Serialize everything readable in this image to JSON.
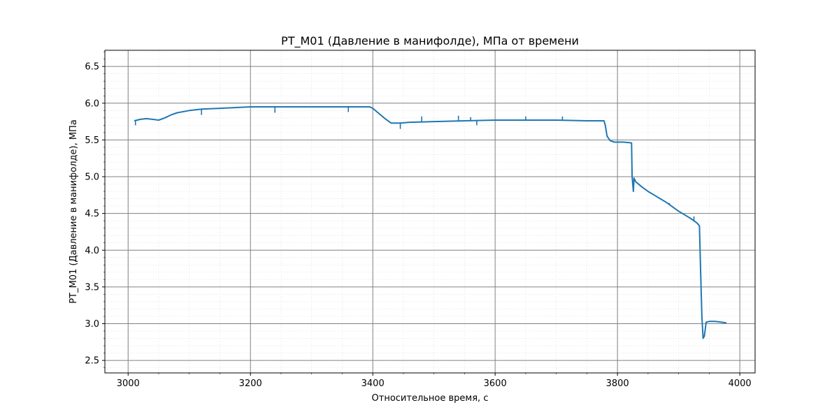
{
  "chart_data": {
    "type": "line",
    "title": "PT_M01 (Давление в манифолде), МПа от времени",
    "xlabel": "Относительное время, с",
    "ylabel": "PT_M01 (Давление в манифолде), МПа",
    "xlim": [
      2962,
      4025
    ],
    "ylim": [
      2.33,
      6.72
    ],
    "xticks": [
      3000,
      3200,
      3400,
      3600,
      3800,
      4000
    ],
    "xtick_labels": [
      "3000",
      "3200",
      "3400",
      "3600",
      "3800",
      "4000"
    ],
    "yticks": [
      2.5,
      3.0,
      3.5,
      4.0,
      4.5,
      5.0,
      5.5,
      6.0,
      6.5
    ],
    "ytick_labels": [
      "2.5",
      "3.0",
      "3.5",
      "4.0",
      "4.5",
      "5.0",
      "5.5",
      "6.0",
      "6.5"
    ],
    "grid": "major and minor",
    "line_color": "#1f77b4",
    "series": [
      {
        "x": [
          3010,
          3020,
          3030,
          3040,
          3050,
          3060,
          3070,
          3080,
          3100,
          3120,
          3150,
          3200,
          3250,
          3300,
          3350,
          3395,
          3400,
          3410,
          3420,
          3430,
          3445,
          3460,
          3500,
          3550,
          3600,
          3650,
          3700,
          3750,
          3778,
          3780,
          3783,
          3788,
          3795,
          3810,
          3823,
          3824,
          3826,
          3827,
          3830,
          3840,
          3850,
          3860,
          3870,
          3880,
          3890,
          3900,
          3910,
          3920,
          3930,
          3934,
          3936,
          3938,
          3940,
          3942,
          3945,
          3950,
          3960,
          3970,
          3978
        ],
        "y": [
          5.76,
          5.78,
          5.79,
          5.78,
          5.77,
          5.8,
          5.84,
          5.87,
          5.9,
          5.92,
          5.93,
          5.95,
          5.95,
          5.95,
          5.95,
          5.95,
          5.93,
          5.86,
          5.79,
          5.73,
          5.73,
          5.74,
          5.75,
          5.76,
          5.77,
          5.77,
          5.77,
          5.76,
          5.76,
          5.7,
          5.55,
          5.49,
          5.47,
          5.47,
          5.46,
          5.0,
          4.8,
          4.98,
          4.93,
          4.86,
          4.8,
          4.75,
          4.7,
          4.65,
          4.59,
          4.53,
          4.48,
          4.43,
          4.37,
          4.33,
          3.7,
          3.1,
          2.8,
          2.83,
          3.02,
          3.03,
          3.03,
          3.02,
          3.01
        ]
      }
    ],
    "spikes": [
      {
        "x": 3012,
        "y": 5.7
      },
      {
        "x": 3120,
        "y": 5.84
      },
      {
        "x": 3240,
        "y": 5.87
      },
      {
        "x": 3360,
        "y": 5.88
      },
      {
        "x": 3445,
        "y": 5.65
      },
      {
        "x": 3480,
        "y": 5.82
      },
      {
        "x": 3540,
        "y": 5.83
      },
      {
        "x": 3560,
        "y": 5.81
      },
      {
        "x": 3570,
        "y": 5.7
      },
      {
        "x": 3650,
        "y": 5.82
      },
      {
        "x": 3710,
        "y": 5.82
      },
      {
        "x": 3885,
        "y": 4.64
      },
      {
        "x": 3925,
        "y": 4.46
      }
    ]
  }
}
